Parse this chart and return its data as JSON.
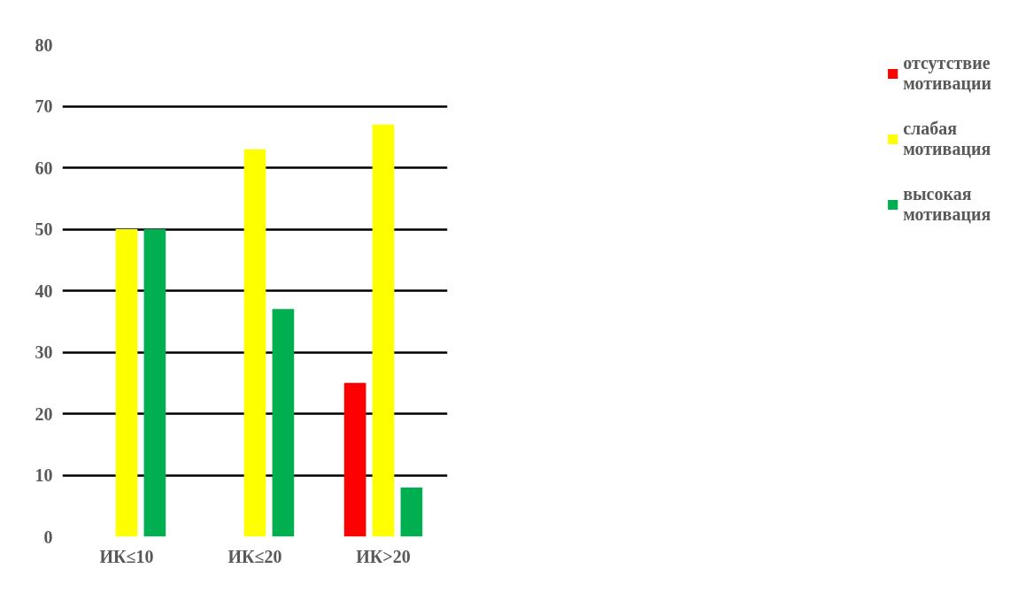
{
  "chart_data": {
    "type": "bar",
    "categories": [
      "ИК≤10",
      "ИК≤20",
      "ИК>20"
    ],
    "series": [
      {
        "name": "отсутствие мотивации",
        "color": "#ff0000",
        "values": [
          0,
          0,
          25
        ]
      },
      {
        "name": "слабая мотивация",
        "color": "#ffff00",
        "values": [
          50,
          63,
          67
        ]
      },
      {
        "name": "высокая мотивация",
        "color": "#00b050",
        "values": [
          50,
          37,
          8
        ]
      }
    ],
    "ylim": [
      0,
      80
    ],
    "yticks": [
      0,
      10,
      20,
      30,
      40,
      50,
      60,
      70,
      80
    ],
    "grid": "y",
    "legend": "right"
  }
}
